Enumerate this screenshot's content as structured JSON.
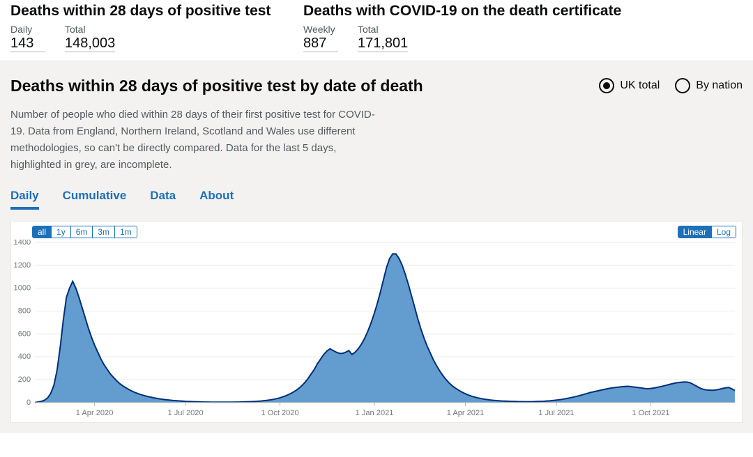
{
  "top_stats": {
    "block1": {
      "title": "Deaths within 28 days of positive test",
      "stat1": {
        "label": "Daily",
        "value": "143"
      },
      "stat2": {
        "label": "Total",
        "value": "148,003"
      }
    },
    "block2": {
      "title": "Deaths with COVID-19 on the death certificate",
      "stat1": {
        "label": "Weekly",
        "value": "887"
      },
      "stat2": {
        "label": "Total",
        "value": "171,801"
      }
    }
  },
  "panel": {
    "title": "Deaths within 28 days of positive test by date of death",
    "radio": {
      "opt1": "UK total",
      "opt2": "By nation"
    },
    "description": "Number of people who died within 28 days of their first positive test for COVID-19. Data from England, Northern Ireland, Scotland and Wales use different methodologies, so can't be directly compared. Data for the last 5 days, highlighted in grey, are incomplete.",
    "tabs": {
      "t1": "Daily",
      "t2": "Cumulative",
      "t3": "Data",
      "t4": "About"
    },
    "range": {
      "r1": "all",
      "r2": "1y",
      "r3": "6m",
      "r4": "3m",
      "r5": "1m"
    },
    "scale": {
      "s1": "Linear",
      "s2": "Log"
    }
  },
  "chart": {
    "type": "area",
    "ylim": [
      0,
      1400
    ],
    "ytick_step": 200,
    "y_ticks": [
      0,
      200,
      400,
      600,
      800,
      1000,
      1200,
      1400
    ],
    "x_labels": [
      "1 Apr 2020",
      "1 Jul 2020",
      "1 Oct 2020",
      "1 Jan 2021",
      "1 Apr 2021",
      "1 Jul 2021",
      "1 Oct 2021"
    ],
    "fill_color": "#5694ca",
    "line_color": "#003078",
    "grid_color": "#e8e8e8",
    "background_color": "#ffffff",
    "series": [
      0,
      5,
      10,
      20,
      40,
      80,
      150,
      280,
      480,
      720,
      920,
      1000,
      1060,
      1000,
      920,
      830,
      740,
      650,
      570,
      500,
      440,
      380,
      330,
      290,
      250,
      220,
      190,
      165,
      145,
      128,
      112,
      98,
      86,
      76,
      67,
      59,
      52,
      46,
      40,
      35,
      31,
      27,
      24,
      21,
      18,
      16,
      14,
      12,
      10,
      9,
      8,
      7,
      6,
      5,
      4,
      4,
      3,
      3,
      3,
      3,
      3,
      3,
      3,
      3,
      4,
      4,
      5,
      6,
      7,
      8,
      9,
      11,
      13,
      16,
      19,
      23,
      28,
      34,
      41,
      50,
      60,
      72,
      86,
      103,
      123,
      147,
      176,
      210,
      250,
      290,
      340,
      380,
      420,
      450,
      470,
      455,
      440,
      430,
      430,
      440,
      455,
      420,
      440,
      470,
      510,
      560,
      620,
      690,
      770,
      860,
      960,
      1070,
      1180,
      1260,
      1300,
      1300,
      1260,
      1200,
      1120,
      1030,
      930,
      830,
      730,
      640,
      560,
      490,
      430,
      370,
      320,
      275,
      235,
      200,
      170,
      145,
      125,
      108,
      92,
      78,
      66,
      56,
      48,
      41,
      35,
      30,
      26,
      22,
      19,
      17,
      15,
      13,
      12,
      11,
      10,
      9,
      8,
      8,
      7,
      7,
      7,
      8,
      9,
      10,
      11,
      13,
      15,
      18,
      21,
      24,
      28,
      33,
      38,
      44,
      50,
      57,
      64,
      72,
      80,
      88,
      94,
      100,
      106,
      112,
      118,
      124,
      128,
      132,
      135,
      138,
      140,
      142,
      138,
      135,
      132,
      128,
      124,
      120,
      122,
      126,
      131,
      137,
      143,
      150,
      157,
      164,
      170,
      175,
      178,
      180,
      178,
      170,
      155,
      140,
      125,
      115,
      110,
      108,
      107,
      110,
      115,
      122,
      128,
      132,
      120,
      105
    ]
  }
}
